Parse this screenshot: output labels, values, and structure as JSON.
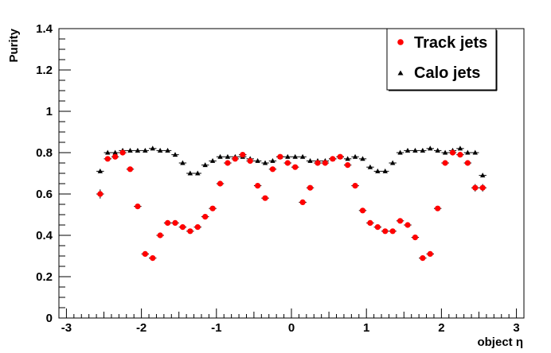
{
  "chart_data": {
    "type": "scatter",
    "title": "",
    "xlabel": "object η",
    "ylabel": "Purity",
    "xlim": [
      -3.1,
      3.1
    ],
    "ylim": [
      0,
      1.4
    ],
    "x_ticks": [
      "-3",
      "-2",
      "-1",
      "0",
      "1",
      "2",
      "3"
    ],
    "x_tick_values": [
      -3,
      -2,
      -1,
      0,
      1,
      2,
      3
    ],
    "y_ticks": [
      "0",
      "0.2",
      "0.4",
      "0.6",
      "0.8",
      "1",
      "1.2",
      "1.4"
    ],
    "y_tick_values": [
      0,
      0.2,
      0.4,
      0.6,
      0.8,
      1.0,
      1.2,
      1.4
    ],
    "grid": false,
    "legend_position": "top-right",
    "bin_half_width": 0.05,
    "series": [
      {
        "name": "Track jets",
        "marker": "circle",
        "color": "#ff0000",
        "x": [
          -2.55,
          -2.45,
          -2.35,
          -2.25,
          -2.15,
          -2.05,
          -1.95,
          -1.85,
          -1.75,
          -1.65,
          -1.55,
          -1.45,
          -1.35,
          -1.25,
          -1.15,
          -1.05,
          -0.95,
          -0.85,
          -0.75,
          -0.65,
          -0.55,
          -0.45,
          -0.35,
          -0.25,
          -0.15,
          -0.05,
          0.05,
          0.15,
          0.25,
          0.35,
          0.45,
          0.55,
          0.65,
          0.75,
          0.85,
          0.95,
          1.05,
          1.15,
          1.25,
          1.35,
          1.45,
          1.55,
          1.65,
          1.75,
          1.85,
          1.95,
          2.05,
          2.15,
          2.25,
          2.35,
          2.45,
          2.55
        ],
        "y": [
          0.6,
          0.77,
          0.78,
          0.8,
          0.72,
          0.54,
          0.31,
          0.29,
          0.4,
          0.46,
          0.46,
          0.44,
          0.42,
          0.44,
          0.49,
          0.53,
          0.65,
          0.75,
          0.77,
          0.79,
          0.76,
          0.64,
          0.58,
          0.72,
          0.78,
          0.75,
          0.73,
          0.56,
          0.63,
          0.75,
          0.75,
          0.77,
          0.78,
          0.74,
          0.64,
          0.52,
          0.46,
          0.44,
          0.42,
          0.42,
          0.47,
          0.45,
          0.39,
          0.29,
          0.31,
          0.53,
          0.75,
          0.8,
          0.79,
          0.75,
          0.63,
          0.63
        ],
        "yerr": [
          0.022,
          0.01,
          0.01,
          0.01,
          0.01,
          0.01,
          0.01,
          0.01,
          0.01,
          0.01,
          0.01,
          0.01,
          0.01,
          0.01,
          0.01,
          0.01,
          0.01,
          0.01,
          0.01,
          0.01,
          0.01,
          0.01,
          0.01,
          0.01,
          0.01,
          0.01,
          0.01,
          0.01,
          0.01,
          0.01,
          0.01,
          0.01,
          0.01,
          0.01,
          0.01,
          0.01,
          0.01,
          0.01,
          0.01,
          0.01,
          0.01,
          0.01,
          0.01,
          0.01,
          0.01,
          0.01,
          0.01,
          0.01,
          0.01,
          0.01,
          0.018,
          0.018
        ]
      },
      {
        "name": "Calo jets",
        "marker": "triangle",
        "color": "#000000",
        "x": [
          -2.55,
          -2.45,
          -2.35,
          -2.25,
          -2.15,
          -2.05,
          -1.95,
          -1.85,
          -1.75,
          -1.65,
          -1.55,
          -1.45,
          -1.35,
          -1.25,
          -1.15,
          -1.05,
          -0.95,
          -0.85,
          -0.75,
          -0.65,
          -0.55,
          -0.45,
          -0.35,
          -0.25,
          -0.15,
          -0.05,
          0.05,
          0.15,
          0.25,
          0.35,
          0.45,
          0.55,
          0.65,
          0.75,
          0.85,
          0.95,
          1.05,
          1.15,
          1.25,
          1.35,
          1.45,
          1.55,
          1.65,
          1.75,
          1.85,
          1.95,
          2.05,
          2.15,
          2.25,
          2.35,
          2.45,
          2.55
        ],
        "y": [
          0.71,
          0.8,
          0.8,
          0.81,
          0.81,
          0.81,
          0.81,
          0.82,
          0.81,
          0.81,
          0.79,
          0.75,
          0.7,
          0.7,
          0.74,
          0.76,
          0.78,
          0.78,
          0.78,
          0.78,
          0.77,
          0.76,
          0.75,
          0.76,
          0.78,
          0.78,
          0.78,
          0.78,
          0.76,
          0.76,
          0.76,
          0.77,
          0.78,
          0.77,
          0.78,
          0.77,
          0.73,
          0.71,
          0.71,
          0.75,
          0.8,
          0.81,
          0.81,
          0.81,
          0.82,
          0.81,
          0.8,
          0.81,
          0.82,
          0.8,
          0.8,
          0.69
        ],
        "yerr": [
          0.008,
          0.006,
          0.006,
          0.006,
          0.006,
          0.006,
          0.006,
          0.006,
          0.006,
          0.006,
          0.006,
          0.006,
          0.006,
          0.006,
          0.006,
          0.006,
          0.006,
          0.006,
          0.006,
          0.006,
          0.006,
          0.006,
          0.006,
          0.006,
          0.006,
          0.006,
          0.006,
          0.006,
          0.006,
          0.006,
          0.006,
          0.006,
          0.006,
          0.006,
          0.006,
          0.006,
          0.006,
          0.006,
          0.006,
          0.006,
          0.006,
          0.006,
          0.006,
          0.006,
          0.006,
          0.006,
          0.006,
          0.006,
          0.006,
          0.006,
          0.006,
          0.008
        ]
      }
    ]
  }
}
